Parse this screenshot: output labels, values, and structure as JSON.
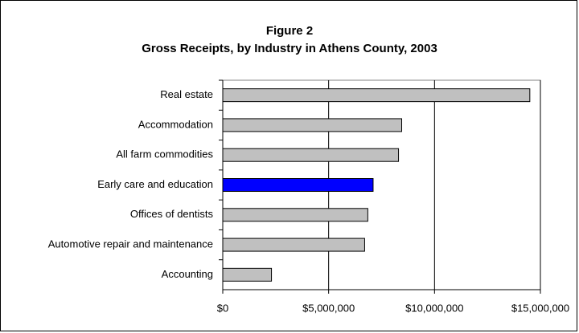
{
  "chart_data": {
    "type": "barh",
    "title": "Figure 2",
    "subtitle": "Gross Receipts, by Industry in Athens County, 2003",
    "categories": [
      "Real estate",
      "Accommodation",
      "All farm commodities",
      "Early care and education",
      "Offices of dentists",
      "Automotive repair and maintenance",
      "Accounting"
    ],
    "values": [
      14500000,
      8450000,
      8300000,
      7100000,
      6850000,
      6700000,
      2300000
    ],
    "colors": [
      "#c0c0c0",
      "#c0c0c0",
      "#c0c0c0",
      "#0000ff",
      "#c0c0c0",
      "#c0c0c0",
      "#c0c0c0"
    ],
    "xlim": [
      0,
      15000000
    ],
    "xticks": [
      {
        "value": 0,
        "label": "$0"
      },
      {
        "value": 5000000,
        "label": "$5,000,000"
      },
      {
        "value": 10000000,
        "label": "$10,000,000"
      },
      {
        "value": 15000000,
        "label": "$15,000,000"
      }
    ],
    "grid": true
  }
}
